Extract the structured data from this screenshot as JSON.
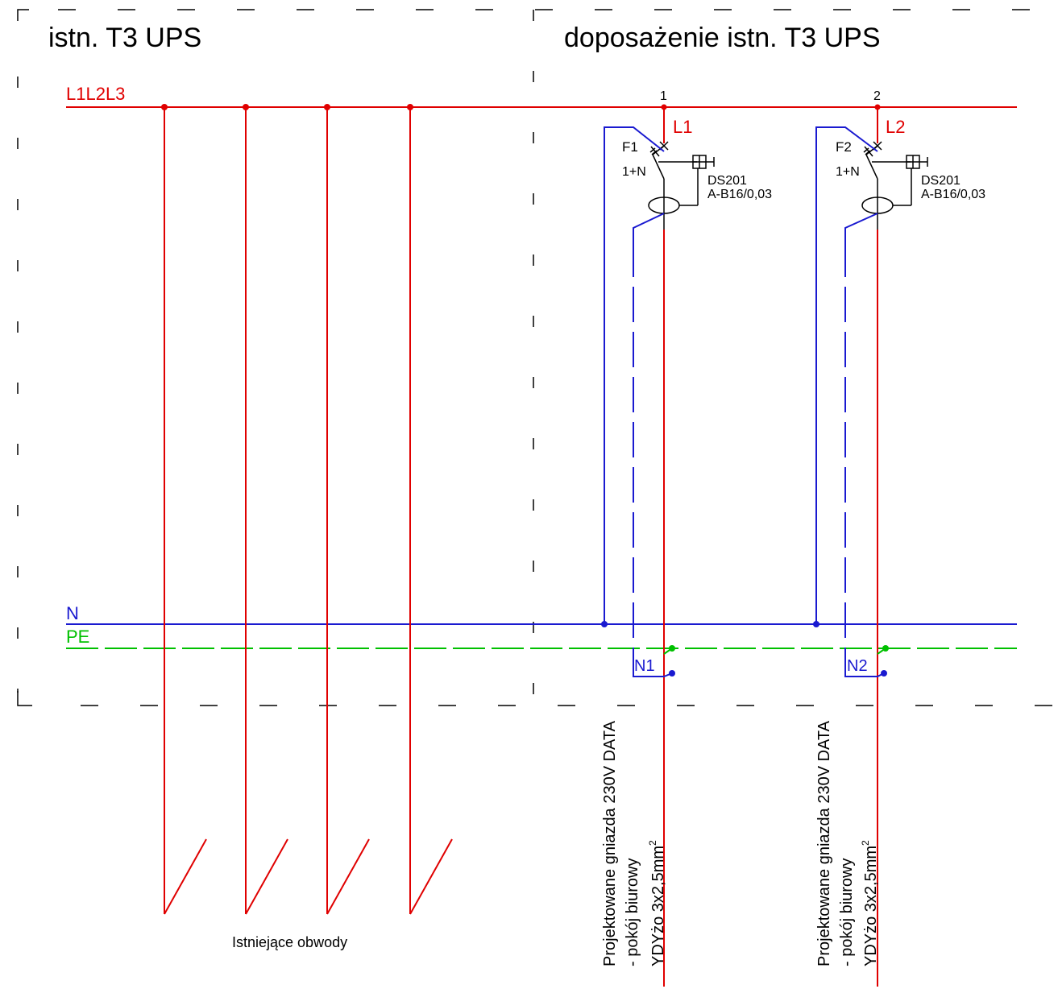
{
  "frame": {
    "left_title": "istn. T3 UPS",
    "right_title": "doposażenie istn. T3 UPS"
  },
  "buses": {
    "l_label": "L1L2L3",
    "n_label": "N",
    "pe_label": "PE"
  },
  "colors": {
    "phase": "#e00000",
    "neutral": "#1a1ad0",
    "pe": "#00c000",
    "frame": "#000000"
  },
  "existing": {
    "label": "Istniejące obwody",
    "count": 4
  },
  "circuits": [
    {
      "number": "1",
      "phase": "L1",
      "breaker": "F1",
      "poles": "1+N",
      "device": "DS201",
      "rating": "A-B16/0,03",
      "neutral": "N1",
      "desc_line1": "Projektowane gniazda 230V DATA",
      "desc_line2": "- pokój biurowy",
      "cable": "YDYżo 3x2,5mm",
      "cable_sup": "2"
    },
    {
      "number": "2",
      "phase": "L2",
      "breaker": "F2",
      "poles": "1+N",
      "device": "DS201",
      "rating": "A-B16/0,03",
      "neutral": "N2",
      "desc_line1": "Projektowane gniazda 230V DATA",
      "desc_line2": "- pokój biurowy",
      "cable": "YDYżo 3x2,5mm",
      "cable_sup": "2"
    }
  ]
}
